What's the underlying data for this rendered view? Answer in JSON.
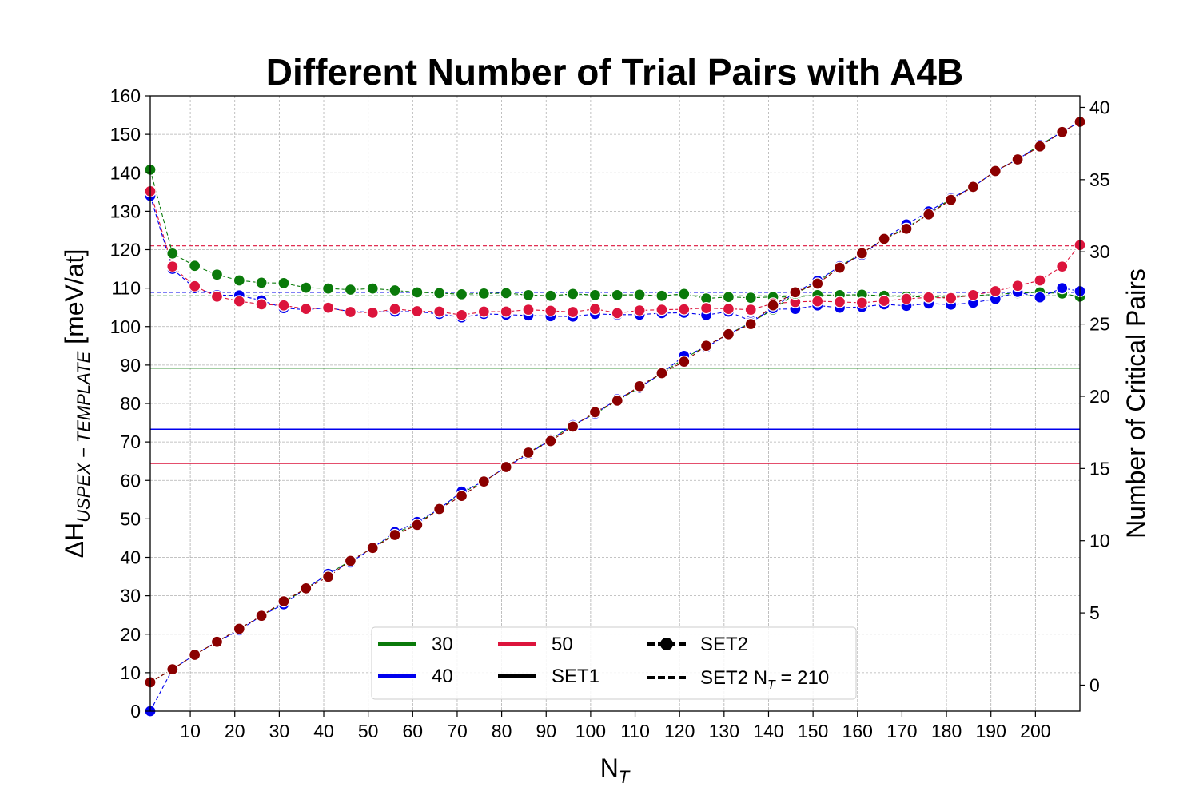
{
  "chart_data": {
    "type": "line",
    "title": "Different Number of Trial Pairs with A4B",
    "xlabel": {
      "main": "N",
      "sub": "T"
    },
    "ylabel": {
      "prefix": "ΔH",
      "sub": "USPEX − TEMPLATE",
      "suffix": " [meV/at]"
    },
    "y2label": "Number of Critical Pairs",
    "xlim": [
      1,
      210
    ],
    "ylim": [
      0,
      160
    ],
    "y2lim": [
      -1.8,
      40.8
    ],
    "xticks": [
      10,
      20,
      30,
      40,
      50,
      60,
      70,
      80,
      90,
      100,
      110,
      120,
      130,
      140,
      150,
      160,
      170,
      180,
      190,
      200
    ],
    "yticks": [
      0,
      10,
      20,
      30,
      40,
      50,
      60,
      70,
      80,
      90,
      100,
      110,
      120,
      130,
      140,
      150,
      160
    ],
    "y2ticks": [
      0,
      5,
      10,
      15,
      20,
      25,
      30,
      35,
      40
    ],
    "grid": true,
    "legend_position": "lower-center",
    "colors": {
      "30": "#0a7a0a",
      "40": "#0000ee",
      "50": "#dc143c",
      "critical": "#8b0000"
    },
    "x": [
      1,
      6,
      11,
      16,
      21,
      26,
      31,
      36,
      41,
      46,
      51,
      56,
      61,
      66,
      71,
      76,
      81,
      86,
      91,
      96,
      101,
      106,
      111,
      116,
      121,
      126,
      131,
      136,
      141,
      146,
      151,
      156,
      161,
      166,
      171,
      176,
      181,
      186,
      191,
      196,
      201,
      206,
      210
    ],
    "series": [
      {
        "name": "30",
        "axis": "left",
        "color": "#0a7a0a",
        "values": [
          140.8,
          119.0,
          115.8,
          113.5,
          112.0,
          111.4,
          111.3,
          110.1,
          109.9,
          109.6,
          109.9,
          109.4,
          108.9,
          108.7,
          108.4,
          108.6,
          108.7,
          108.2,
          108.0,
          108.5,
          108.2,
          108.2,
          108.3,
          108.0,
          108.5,
          107.3,
          107.7,
          107.5,
          107.7,
          107.7,
          108.2,
          108.2,
          108.3,
          108.0,
          107.8,
          107.7,
          107.6,
          108.0,
          108.4,
          108.7,
          108.9,
          108.6,
          107.8
        ]
      },
      {
        "name": "40",
        "axis": "left",
        "color": "#0000ee",
        "values": [
          134.0,
          115.0,
          110.0,
          108.2,
          108.1,
          106.8,
          104.8,
          104.4,
          104.9,
          103.9,
          103.8,
          103.9,
          103.9,
          103.3,
          102.4,
          103.3,
          103.1,
          102.9,
          102.7,
          102.6,
          103.3,
          103.1,
          103.1,
          103.5,
          103.6,
          103.0,
          103.9,
          101.5,
          104.5,
          104.6,
          105.5,
          104.9,
          105.1,
          105.8,
          105.4,
          106.0,
          105.7,
          106.2,
          107.2,
          109.0,
          107.6,
          110.0,
          109.2
        ]
      },
      {
        "name": "50",
        "axis": "left",
        "color": "#dc143c",
        "values": [
          135.2,
          115.6,
          110.5,
          107.8,
          106.6,
          105.8,
          105.5,
          104.6,
          104.9,
          103.8,
          103.6,
          104.6,
          104.0,
          103.9,
          103.0,
          103.9,
          103.9,
          104.4,
          104.1,
          103.8,
          104.6,
          103.5,
          104.2,
          104.4,
          104.5,
          104.8,
          104.6,
          104.4,
          106.0,
          106.4,
          106.6,
          106.4,
          106.2,
          106.7,
          107.2,
          107.6,
          107.4,
          108.2,
          109.2,
          110.6,
          112.0,
          115.6,
          121.2
        ]
      },
      {
        "name": "30",
        "axis": "right",
        "color": "#0a7a0a",
        "values": [
          0.2,
          1.1,
          2.1,
          3.0,
          3.9,
          4.8,
          5.7,
          6.7,
          7.7,
          8.6,
          9.5,
          10.5,
          11.2,
          12.2,
          13.3,
          14.1,
          15.1,
          16.1,
          17.0,
          18.0,
          18.8,
          19.7,
          20.6,
          21.6,
          22.6,
          23.5,
          24.3,
          25.1,
          26.0,
          27.1,
          27.9,
          29.0,
          29.9,
          30.9,
          31.7,
          32.6,
          33.7,
          34.5,
          35.6,
          36.4,
          37.4,
          38.3,
          39.0
        ]
      },
      {
        "name": "40",
        "axis": "right",
        "color": "#0000ee",
        "values": [
          -1.8,
          1.1,
          2.1,
          3.0,
          3.8,
          4.8,
          5.6,
          6.7,
          7.7,
          8.5,
          9.5,
          10.6,
          11.3,
          12.2,
          13.4,
          14.1,
          15.1,
          16.0,
          17.0,
          18.0,
          18.8,
          19.8,
          20.6,
          21.6,
          22.8,
          23.4,
          24.3,
          25.1,
          26.1,
          27.2,
          28.0,
          29.0,
          29.8,
          30.9,
          31.9,
          32.8,
          33.7,
          34.5,
          35.6,
          36.4,
          37.4,
          38.3,
          39.0
        ]
      },
      {
        "name": "50",
        "axis": "right",
        "color": "#8b0000",
        "values": [
          0.2,
          1.1,
          2.1,
          3.0,
          3.9,
          4.8,
          5.8,
          6.7,
          7.5,
          8.6,
          9.5,
          10.4,
          11.1,
          12.2,
          13.1,
          14.1,
          15.1,
          16.1,
          16.9,
          17.9,
          18.9,
          19.7,
          20.7,
          21.6,
          22.4,
          23.5,
          24.3,
          25.0,
          26.3,
          27.2,
          27.8,
          28.9,
          29.9,
          30.9,
          31.6,
          32.6,
          33.6,
          34.5,
          35.6,
          36.4,
          37.3,
          38.3,
          39.0
        ]
      }
    ],
    "hlines": [
      {
        "name": "30",
        "set": "SET1",
        "value": 89.2,
        "style": "solid",
        "color": "#0a7a0a"
      },
      {
        "name": "40",
        "set": "SET1",
        "value": 73.3,
        "style": "solid",
        "color": "#0000ee"
      },
      {
        "name": "50",
        "set": "SET1",
        "value": 64.4,
        "style": "solid",
        "color": "#dc143c"
      },
      {
        "name": "30",
        "set": "SET2 N_T = 210",
        "value": 108.0,
        "style": "dashed",
        "color": "#0a7a0a"
      },
      {
        "name": "40",
        "set": "SET2 N_T = 210",
        "value": 108.9,
        "style": "dashed",
        "color": "#0000ee"
      },
      {
        "name": "50",
        "set": "SET2 N_T = 210",
        "value": 121.0,
        "style": "dashed",
        "color": "#dc143c"
      }
    ],
    "legend": [
      {
        "label": "30",
        "kind": "color",
        "color": "#0a7a0a"
      },
      {
        "label": "40",
        "kind": "color",
        "color": "#0000ee"
      },
      {
        "label": "50",
        "kind": "color",
        "color": "#dc143c"
      },
      {
        "label": "SET1",
        "kind": "solid"
      },
      {
        "label": "SET2",
        "kind": "dash-marker"
      },
      {
        "label": "SET2 N",
        "sub": "T",
        "suffix": " = 210",
        "kind": "dashed"
      }
    ]
  }
}
